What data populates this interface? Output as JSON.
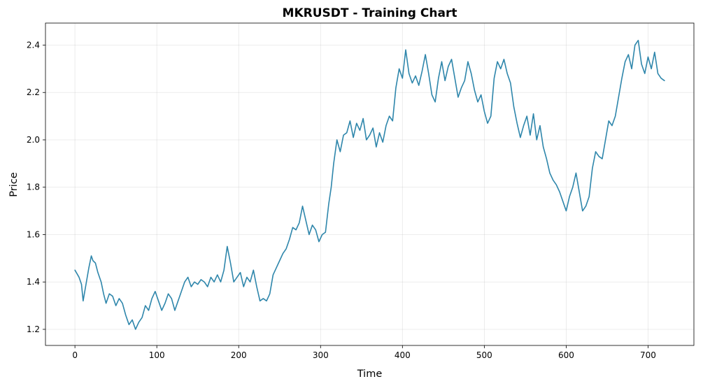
{
  "chart_data": {
    "type": "line",
    "title": "MKRUSDT - Training Chart",
    "xlabel": "Time",
    "ylabel": "Price",
    "xlim": [
      -36,
      756
    ],
    "ylim": [
      1.132,
      2.493
    ],
    "xticks": [
      0,
      100,
      200,
      300,
      400,
      500,
      600,
      700
    ],
    "yticks": [
      1.2,
      1.4,
      1.6,
      1.8,
      2.0,
      2.2,
      2.4
    ],
    "xtick_labels": [
      "0",
      "100",
      "200",
      "300",
      "400",
      "500",
      "600",
      "700"
    ],
    "ytick_labels": [
      "1.2",
      "1.4",
      "1.6",
      "1.8",
      "2.0",
      "2.2",
      "2.4"
    ],
    "grid": true,
    "color": "#2e86ab",
    "series": [
      {
        "x": [
          0,
          5,
          8,
          10,
          12,
          14,
          17,
          20,
          22,
          25,
          28,
          32,
          35,
          38,
          42,
          46,
          50,
          54,
          58,
          62,
          66,
          70,
          74,
          78,
          82,
          86,
          90,
          94,
          98,
          102,
          106,
          110,
          114,
          118,
          122,
          126,
          130,
          134,
          138,
          142,
          146,
          150,
          154,
          158,
          162,
          166,
          170,
          174,
          178,
          182,
          186,
          190,
          194,
          198,
          202,
          206,
          210,
          214,
          218,
          222,
          226,
          230,
          234,
          238,
          242,
          246,
          250,
          254,
          258,
          262,
          266,
          270,
          274,
          278,
          282,
          286,
          290,
          294,
          298,
          302,
          306,
          310,
          313,
          316,
          320,
          324,
          328,
          332,
          336,
          340,
          344,
          348,
          352,
          356,
          360,
          364,
          368,
          372,
          376,
          380,
          384,
          388,
          392,
          396,
          400,
          404,
          408,
          412,
          416,
          420,
          424,
          428,
          432,
          436,
          440,
          444,
          448,
          452,
          456,
          460,
          464,
          468,
          472,
          476,
          480,
          484,
          488,
          492,
          496,
          500,
          504,
          508,
          512,
          516,
          520,
          524,
          528,
          532,
          536,
          540,
          544,
          548,
          552,
          556,
          560,
          564,
          568,
          572,
          576,
          580,
          584,
          588,
          592,
          596,
          600,
          604,
          608,
          612,
          616,
          620,
          624,
          628,
          632,
          636,
          640,
          644,
          648,
          652,
          656,
          660,
          664,
          668,
          672,
          676,
          680,
          684,
          688,
          692,
          696,
          700,
          704,
          708,
          712,
          716,
          720
        ],
        "y": [
          1.45,
          1.42,
          1.39,
          1.32,
          1.36,
          1.4,
          1.46,
          1.51,
          1.49,
          1.48,
          1.44,
          1.4,
          1.35,
          1.31,
          1.35,
          1.34,
          1.3,
          1.33,
          1.31,
          1.26,
          1.22,
          1.24,
          1.2,
          1.23,
          1.25,
          1.3,
          1.28,
          1.33,
          1.36,
          1.32,
          1.28,
          1.31,
          1.35,
          1.33,
          1.28,
          1.32,
          1.36,
          1.4,
          1.42,
          1.38,
          1.4,
          1.39,
          1.41,
          1.4,
          1.38,
          1.42,
          1.4,
          1.43,
          1.4,
          1.45,
          1.55,
          1.48,
          1.4,
          1.42,
          1.44,
          1.38,
          1.42,
          1.4,
          1.45,
          1.38,
          1.32,
          1.33,
          1.32,
          1.35,
          1.43,
          1.46,
          1.49,
          1.52,
          1.54,
          1.58,
          1.63,
          1.62,
          1.65,
          1.72,
          1.66,
          1.6,
          1.64,
          1.62,
          1.57,
          1.6,
          1.61,
          1.73,
          1.8,
          1.9,
          2.0,
          1.95,
          2.02,
          2.03,
          2.08,
          2.01,
          2.07,
          2.04,
          2.09,
          2.0,
          2.02,
          2.05,
          1.97,
          2.03,
          1.99,
          2.06,
          2.1,
          2.08,
          2.22,
          2.3,
          2.26,
          2.38,
          2.28,
          2.24,
          2.27,
          2.23,
          2.29,
          2.36,
          2.28,
          2.19,
          2.16,
          2.26,
          2.33,
          2.25,
          2.31,
          2.34,
          2.26,
          2.18,
          2.22,
          2.25,
          2.33,
          2.28,
          2.21,
          2.16,
          2.19,
          2.12,
          2.07,
          2.1,
          2.26,
          2.33,
          2.3,
          2.34,
          2.28,
          2.24,
          2.14,
          2.07,
          2.01,
          2.06,
          2.1,
          2.02,
          2.11,
          2.0,
          2.06,
          1.97,
          1.92,
          1.86,
          1.83,
          1.81,
          1.78,
          1.74,
          1.7,
          1.76,
          1.8,
          1.86,
          1.78,
          1.7,
          1.72,
          1.76,
          1.88,
          1.95,
          1.93,
          1.92,
          2.0,
          2.08,
          2.06,
          2.1,
          2.18,
          2.26,
          2.33,
          2.36,
          2.3,
          2.4,
          2.42,
          2.32,
          2.28,
          2.35,
          2.3,
          2.37,
          2.28,
          2.26,
          2.25
        ]
      }
    ]
  }
}
